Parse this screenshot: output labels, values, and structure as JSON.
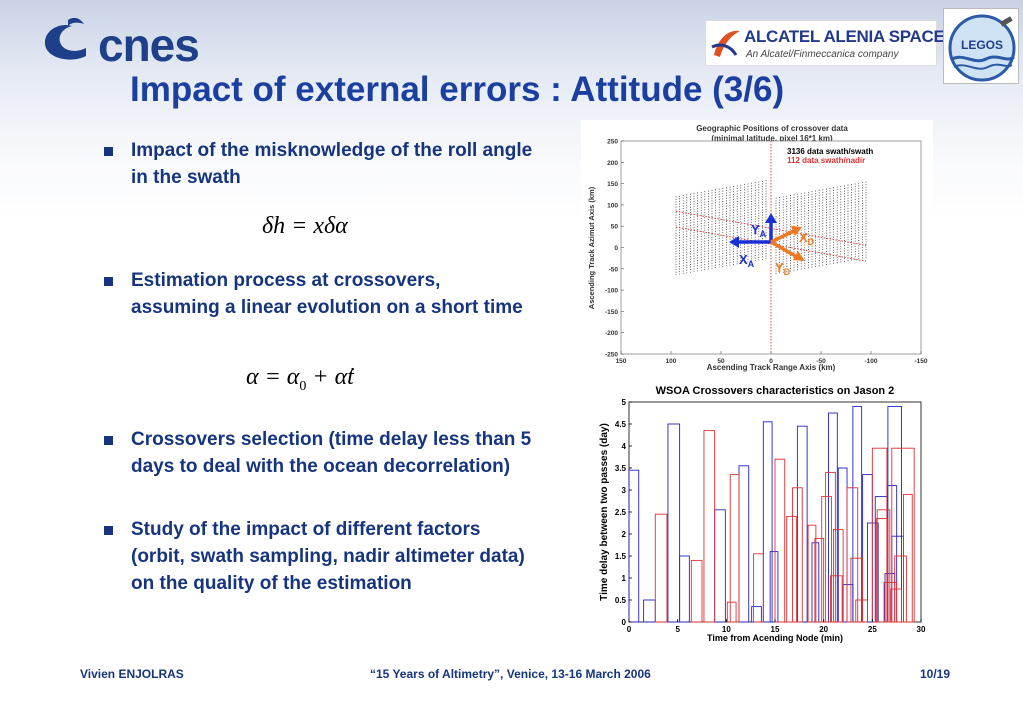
{
  "header": {
    "logo_text": "cnes",
    "partner_logo_name": "ALCATEL ALENIA SPACE",
    "partner_logo_sub": "An Alcatel/Finmeccanica company",
    "lab_logo_text": "LEGOS",
    "title": "Impact of external errors : Attitude (3/6)"
  },
  "bullets": [
    {
      "text": "Impact of the misknowledge of the roll angle in the swath"
    },
    {
      "text": "Estimation process at crossovers, assuming a linear evolution on a short time"
    },
    {
      "text": "Crossovers selection (time delay less than 5 days to deal with the ocean decorrelation)"
    },
    {
      "text": "Study of the impact of different factors (orbit, swath sampling, nadir altimeter data) on the quality of the estimation"
    }
  ],
  "formulas": {
    "f1": "δh = xδα",
    "f2_lhs": "α = α",
    "f2_sub": "0",
    "f2_rhs": " + α̇t"
  },
  "colors": {
    "title": "#1a3fa0",
    "text": "#16357e",
    "series_blue": "#2222cc",
    "series_red": "#e03030",
    "arrow_blue": "#1a2fd6",
    "arrow_orange": "#f07820"
  },
  "chart_data": [
    {
      "type": "scatter",
      "title": "Geographic Positions of crossover data",
      "subtitle": "(minimal latitude, pixel 16*1 km)",
      "xlabel": "Ascending Track Range Axis (km)",
      "ylabel": "Ascending Track Azimut Axis (km)",
      "xlim": [
        150,
        -150
      ],
      "ylim": [
        -250,
        250
      ],
      "xticks": [
        "150",
        "100",
        "50",
        "0",
        "-50",
        "-100",
        "-150"
      ],
      "yticks": [
        "250",
        "200",
        "150",
        "100",
        "50",
        "0",
        "-50",
        "-100",
        "-150",
        "-200",
        "-250"
      ],
      "legend": [
        {
          "label": "3136 data swath/swath",
          "color": "#000000"
        },
        {
          "label": "112 data swath/nadir",
          "color": "#e03030"
        }
      ],
      "annotations": {
        "ya": "Y",
        "ya_sub": "A",
        "xa": "X",
        "xa_sub": "A",
        "xd": "X",
        "xd_sub": "D",
        "yd": "Y",
        "yd_sub": "D"
      }
    },
    {
      "type": "bar",
      "title": "WSOA Crossovers characteristics on Jason 2",
      "xlabel": "Time from Acending Node (min)",
      "ylabel": "Time delay between two passes (day)",
      "xlim": [
        0,
        30
      ],
      "ylim": [
        0,
        5
      ],
      "xticks": [
        "0",
        "5",
        "10",
        "15",
        "20",
        "25",
        "30"
      ],
      "yticks": [
        "0",
        "0.5",
        "1",
        "1.5",
        "2",
        "2.5",
        "3",
        "3.5",
        "4",
        "4.5",
        "5"
      ],
      "series": [
        {
          "color": "#2222cc",
          "bars": [
            [
              0,
              1,
              3.45
            ],
            [
              1.5,
              2.7,
              0.5
            ],
            [
              4,
              5.2,
              4.5
            ],
            [
              5.2,
              6.2,
              1.5
            ],
            [
              8.8,
              9.9,
              2.55
            ],
            [
              11.3,
              12.3,
              3.55
            ],
            [
              12.6,
              13.6,
              0.35
            ],
            [
              13.8,
              14.7,
              4.55
            ],
            [
              14.5,
              15.3,
              1.6
            ],
            [
              17.3,
              18.3,
              4.45
            ],
            [
              18.8,
              19.5,
              1.8
            ],
            [
              20.5,
              21.4,
              4.75
            ],
            [
              21.5,
              22.4,
              3.5
            ],
            [
              22,
              23,
              0.85
            ],
            [
              23,
              23.9,
              4.9
            ],
            [
              24,
              25,
              3.35
            ],
            [
              24.5,
              25.6,
              2.25
            ],
            [
              25.3,
              26.5,
              2.85
            ],
            [
              26.6,
              28,
              4.9
            ],
            [
              26.5,
              27.5,
              3.1
            ],
            [
              27,
              28.2,
              1.95
            ],
            [
              26.3,
              27.3,
              1.1
            ]
          ]
        },
        {
          "color": "#e03030",
          "bars": [
            [
              2.7,
              3.9,
              2.45
            ],
            [
              6.4,
              7.5,
              1.4
            ],
            [
              7.7,
              8.8,
              4.35
            ],
            [
              10.1,
              11,
              0.45
            ],
            [
              10.4,
              11.3,
              3.35
            ],
            [
              12.8,
              13.8,
              1.55
            ],
            [
              15,
              16,
              3.7
            ],
            [
              16.2,
              17.2,
              2.4
            ],
            [
              16.8,
              17.8,
              3.05
            ],
            [
              18.4,
              19.2,
              2.2
            ],
            [
              19.1,
              20,
              1.9
            ],
            [
              19.8,
              20.8,
              2.85
            ],
            [
              20.2,
              21.2,
              3.4
            ],
            [
              20.7,
              21.9,
              1.05
            ],
            [
              21,
              22,
              2.1
            ],
            [
              22.4,
              23.5,
              3.05
            ],
            [
              22.8,
              24,
              1.45
            ],
            [
              23.3,
              24.5,
              0.5
            ],
            [
              25,
              26.5,
              3.95
            ],
            [
              25.4,
              26.6,
              2.35
            ],
            [
              25.5,
              26.8,
              2.55
            ],
            [
              26.2,
              27.5,
              0.9
            ],
            [
              27,
              29.3,
              3.95
            ],
            [
              28.2,
              29.1,
              2.9
            ],
            [
              27.3,
              28.5,
              1.5
            ],
            [
              26.9,
              28,
              0.75
            ]
          ]
        }
      ]
    }
  ],
  "footer": {
    "author": "Vivien ENJOLRAS",
    "event": "“15 Years of Altimetry”, Venice, 13-16 March 2006",
    "page": "10/19"
  }
}
